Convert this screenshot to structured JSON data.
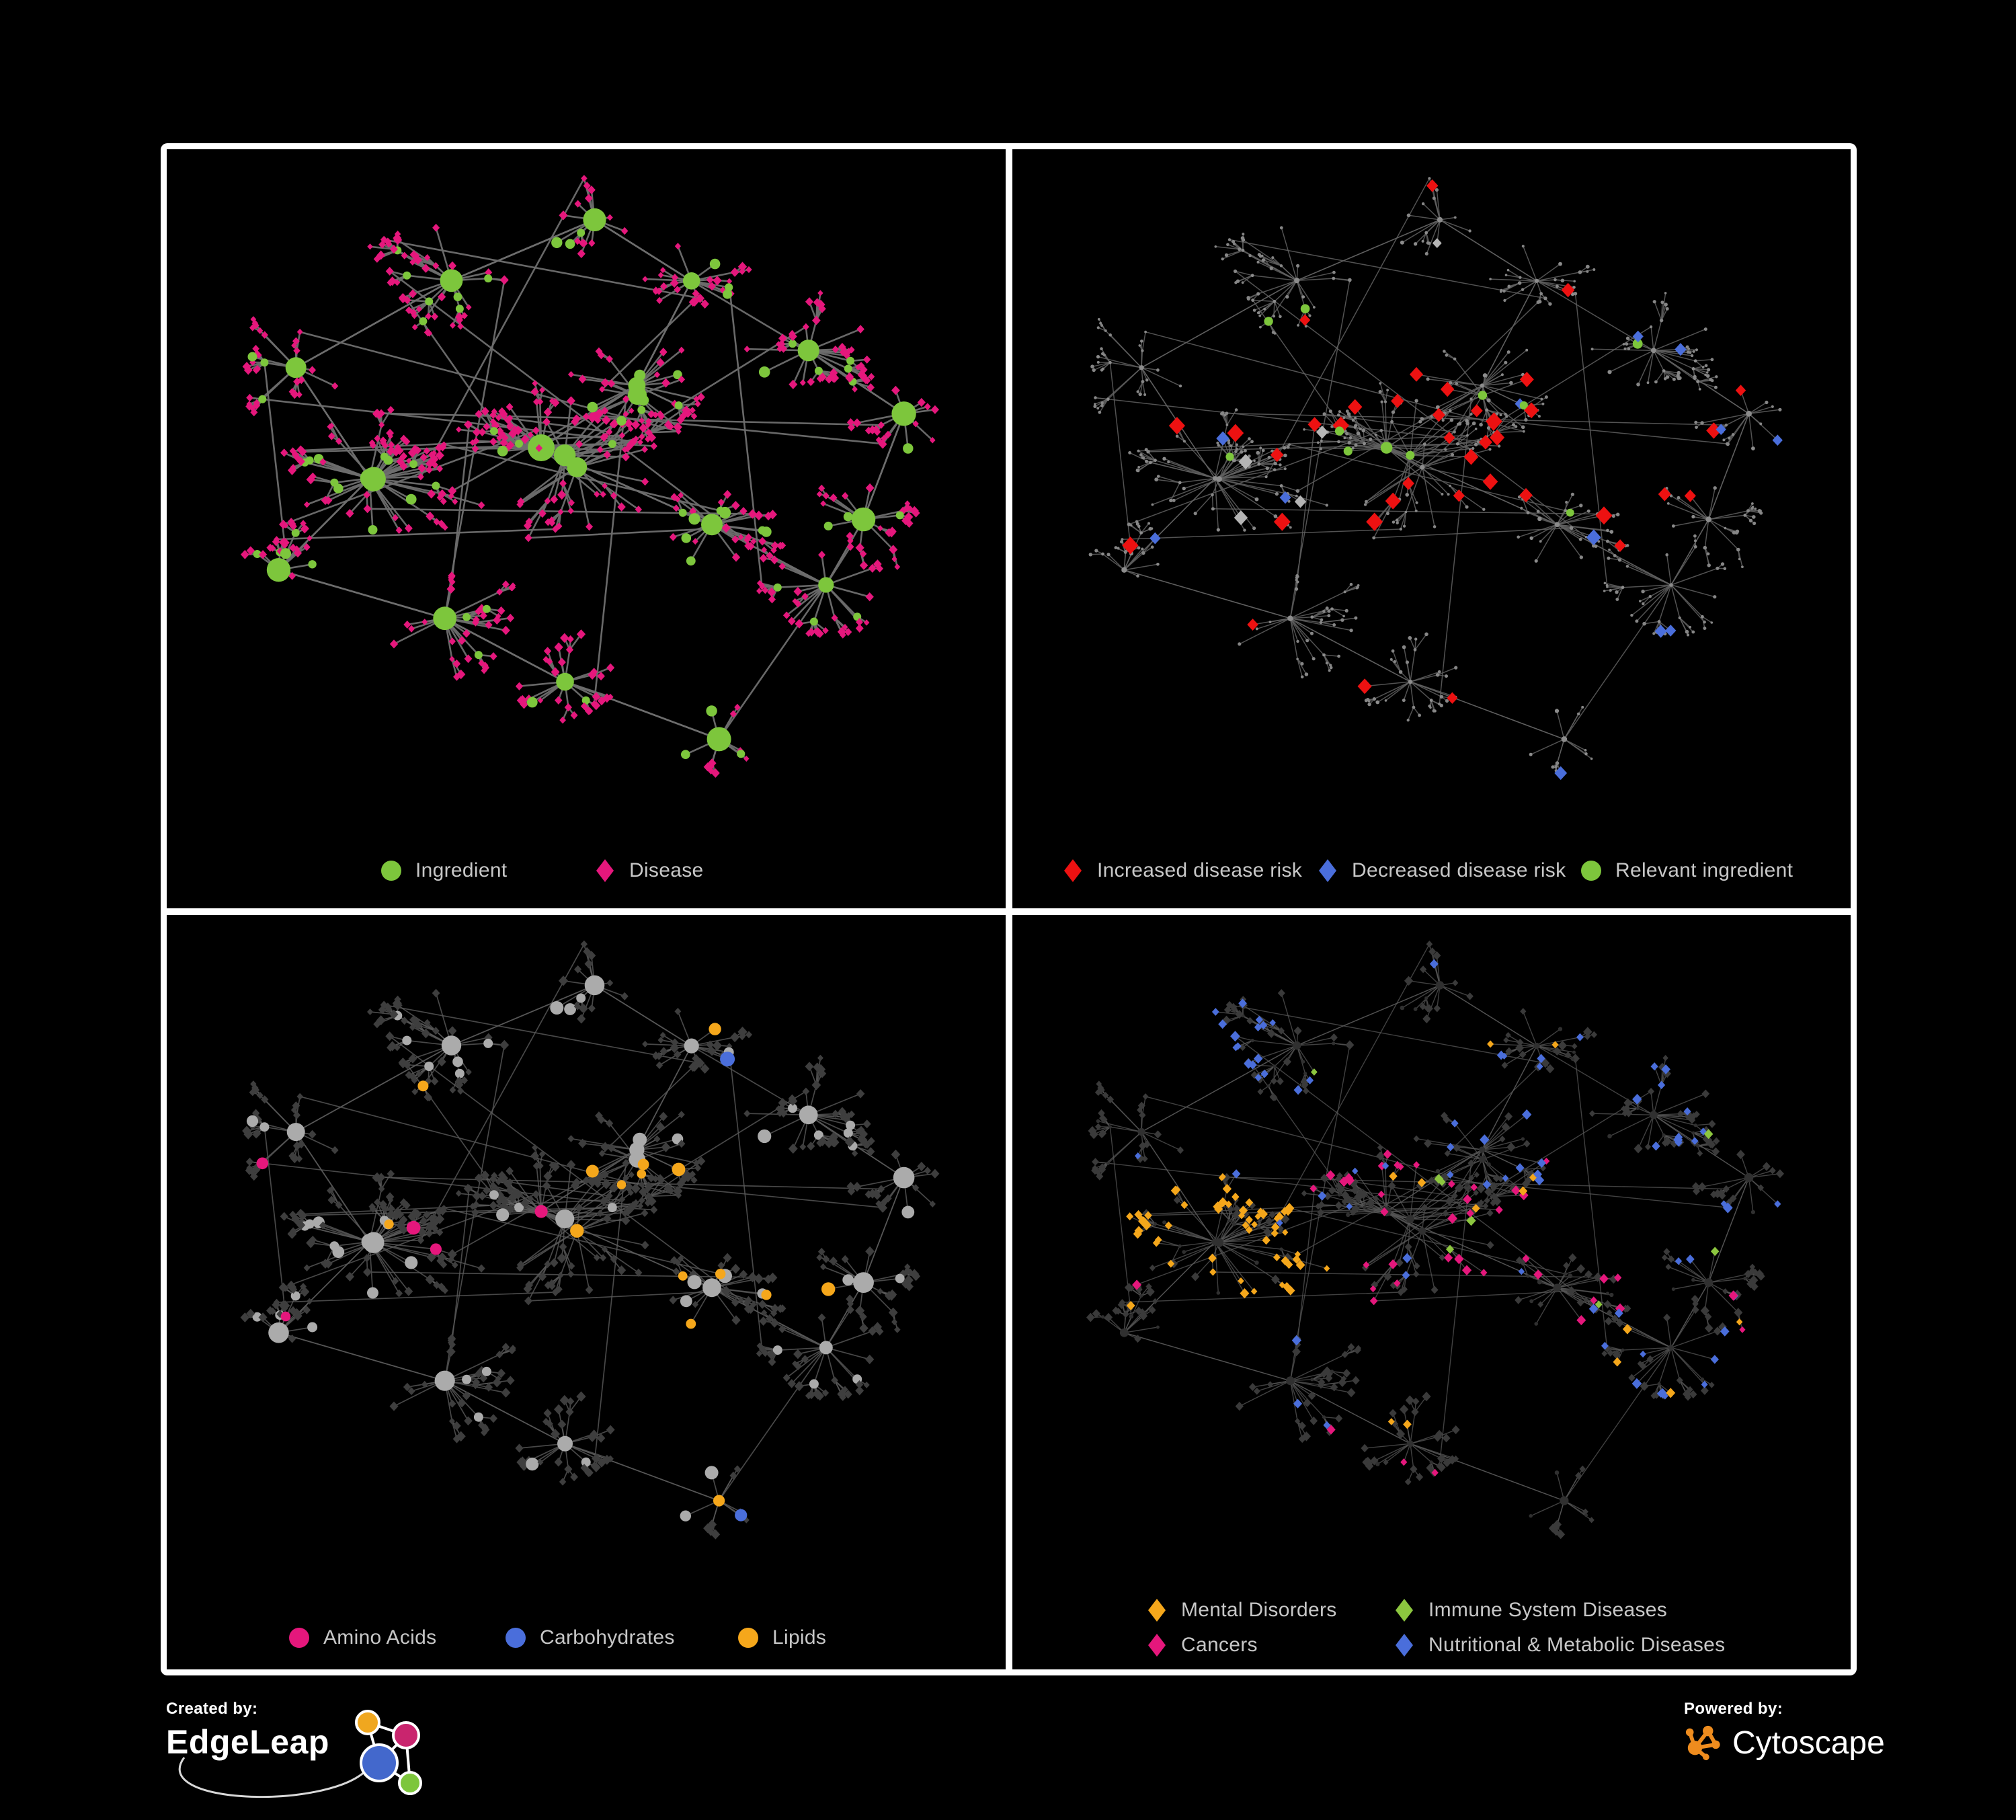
{
  "figure": {
    "background": "#000000",
    "frame_color": "#ffffff"
  },
  "footer": {
    "created_by_label": "Created by:",
    "created_by_brand": "EdgeLeap",
    "powered_by_label": "Powered by:",
    "powered_by_brand": "Cytoscape",
    "edgeleap_logo_colors": {
      "orange": "#F0A71F",
      "pink": "#C9256E",
      "blue": "#4368CC",
      "green": "#7DC63C"
    },
    "cytoscape_logo_color": "#EE8C1E"
  },
  "chart_data": {
    "type": "network-multi-panel",
    "description": "Four views of the same ingredient-disease association network rendered on black panels in a 2x2 grid.",
    "panels": [
      {
        "id": "ingredient-disease",
        "position": "top-left",
        "legend": [
          {
            "label": "Ingredient",
            "shape": "circle",
            "color": "#7DC63C"
          },
          {
            "label": "Disease",
            "shape": "diamond",
            "color": "#E5177C"
          }
        ],
        "style": {
          "edge": {
            "color": "#6E6E6E",
            "width": 2.6,
            "opacity": 0.95
          },
          "ingredient": {
            "shape": "circle",
            "color": "#7DC63C",
            "r": 7,
            "hub_r": 15,
            "sub_r": 6
          },
          "disease": {
            "shape": "diamond",
            "color": "#E5177C",
            "r": 5.6
          }
        },
        "highlight_rules": []
      },
      {
        "id": "disease-risk",
        "position": "top-right",
        "legend": [
          {
            "label": "Increased disease risk",
            "shape": "diamond",
            "color": "#ED1111"
          },
          {
            "label": "Decreased disease risk",
            "shape": "diamond",
            "color": "#4A6EDB"
          },
          {
            "label": "Relevant ingredient",
            "shape": "circle",
            "color": "#7DC63C"
          }
        ],
        "style": {
          "edge": {
            "color": "#606060",
            "width": 1.5,
            "opacity": 0.85
          },
          "ingredient": {
            "shape": "circle",
            "color": "#8C8C8C",
            "r": 2.6,
            "hub_r": 3.6,
            "sub_r": 2.4
          },
          "disease": {
            "shape": "circle",
            "color": "#868686",
            "r": 2.2
          }
        },
        "highlight_rules": [
          {
            "on": "d",
            "shape": "diamond",
            "color": "#ED1111",
            "r": 10.5,
            "clusters": [
              0,
              1,
              2,
              8
            ],
            "p": 0.13,
            "p_other": 0.015,
            "max": 44
          },
          {
            "on": "d",
            "shape": "diamond",
            "color": "#4A6EDB",
            "r": 9.5,
            "clusters": [
              1,
              2,
              7
            ],
            "p": 0.07,
            "p_other": 0.008,
            "max": 14
          },
          {
            "on": "d",
            "shape": "diamond",
            "color": "#B5B5B5",
            "r": 9.0,
            "clusters": [
              0,
              1,
              8
            ],
            "p": 0.03,
            "p_other": 0.004,
            "max": 8
          },
          {
            "on": "i",
            "shape": "circle",
            "color": "#7DC63C",
            "r": 6.8,
            "clusters": [
              0,
              1,
              2,
              8,
              9,
              14
            ],
            "p": 0.2,
            "p_other": 0.05,
            "max": 40
          }
        ]
      },
      {
        "id": "ingredient-classes",
        "position": "bottom-left",
        "legend": [
          {
            "label": "Amino Acids",
            "shape": "circle",
            "color": "#E5177C"
          },
          {
            "label": "Carbohydrates",
            "shape": "circle",
            "color": "#4A6EDB"
          },
          {
            "label": "Lipids",
            "shape": "circle",
            "color": "#F5A71B"
          }
        ],
        "style": {
          "edge": {
            "color": "#5A5A5A",
            "width": 1.7,
            "opacity": 0.8
          },
          "ingredient": {
            "shape": "circle",
            "color": "#ABABAB",
            "r": 8.5,
            "hub_r": 13,
            "sub_r": 7
          },
          "disease": {
            "shape": "diamond",
            "color": "#3E3E3E",
            "r": 6
          }
        },
        "highlight_rules": [
          {
            "on": "i",
            "shape": "circle",
            "color": "#F5A71B",
            "r": 8.5,
            "clusters": [
              2,
              8
            ],
            "p": 0.42,
            "p_other": 0.075,
            "max": 60
          },
          {
            "on": "i",
            "shape": "circle",
            "color": "#E5177C",
            "r": 8.5,
            "clusters": [
              0,
              1,
              10,
              11,
              14
            ],
            "p": 0.1,
            "p_other": 0.05,
            "max": 27
          },
          {
            "on": "i",
            "shape": "circle",
            "color": "#4A6EDB",
            "r": 8.5,
            "clusters": [
              2,
              3
            ],
            "p": 0.1,
            "p_other": 0.018,
            "max": 14
          }
        ]
      },
      {
        "id": "disease-classes",
        "position": "bottom-right",
        "legend": [
          {
            "label": "Mental Disorders",
            "shape": "diamond",
            "color": "#F5A71B"
          },
          {
            "label": "Immune System Diseases",
            "shape": "diamond",
            "color": "#8CC63F"
          },
          {
            "label": "Cancers",
            "shape": "diamond",
            "color": "#E5177C"
          },
          {
            "label": "Nutritional & Metabolic Diseases",
            "shape": "diamond",
            "color": "#4A6EDB"
          }
        ],
        "style": {
          "edge": {
            "color": "#575757",
            "width": 1.4,
            "opacity": 0.75
          },
          "ingredient": {
            "shape": "circle",
            "color": "#303030",
            "r": 2.8,
            "hub_r": 5.5,
            "sub_r": 2.6
          },
          "disease": {
            "shape": "diamond",
            "color": "#3A3A3A",
            "r": 5.6
          }
        },
        "highlight_rules": [
          {
            "on": "d",
            "shape": "diamond",
            "color": "#F5A71B",
            "r": 6.2,
            "clusters": [
              1
            ],
            "p": 0.6,
            "p_other": 0.02,
            "max": 100
          },
          {
            "on": "d",
            "shape": "diamond",
            "color": "#E5177C",
            "r": 6.2,
            "clusters": [
              0,
              8,
              11
            ],
            "p": 0.22,
            "p_other": 0.02,
            "max": 72
          },
          {
            "on": "d",
            "shape": "diamond",
            "color": "#4A6EDB",
            "r": 6.2,
            "clusters": [
              2,
              3,
              5,
              6,
              7,
              9,
              14
            ],
            "p": 0.2,
            "p_other": 0.04,
            "max": 105
          },
          {
            "on": "d",
            "shape": "diamond",
            "color": "#8CC63F",
            "r": 6.2,
            "clusters": [],
            "p": 0,
            "p_other": 0.02,
            "max": 14
          }
        ]
      }
    ],
    "network_generation": {
      "seed": 7,
      "long_edges": 26,
      "clusters": [
        {
          "x": 0.47,
          "y": 0.47,
          "hubs": 3,
          "children": 44,
          "spread": 0.085
        },
        {
          "x": 0.2,
          "y": 0.5,
          "hubs": 2,
          "children": 36,
          "spread": 0.075
        },
        {
          "x": 0.56,
          "y": 0.34,
          "hubs": 2,
          "children": 30,
          "spread": 0.068
        },
        {
          "x": 0.33,
          "y": 0.16,
          "hubs": 1,
          "children": 18,
          "spread": 0.07
        },
        {
          "x": 0.49,
          "y": 0.09,
          "hubs": 1,
          "children": 13,
          "spread": 0.055
        },
        {
          "x": 0.64,
          "y": 0.16,
          "hubs": 1,
          "children": 13,
          "spread": 0.055
        },
        {
          "x": 0.81,
          "y": 0.27,
          "hubs": 1,
          "children": 16,
          "spread": 0.06
        },
        {
          "x": 0.91,
          "y": 0.4,
          "hubs": 1,
          "children": 11,
          "spread": 0.05
        },
        {
          "x": 0.645,
          "y": 0.585,
          "hubs": 1,
          "children": 22,
          "spread": 0.055
        },
        {
          "x": 0.8,
          "y": 0.68,
          "hubs": 1,
          "children": 15,
          "spread": 0.06
        },
        {
          "x": 0.285,
          "y": 0.715,
          "hubs": 1,
          "children": 17,
          "spread": 0.065
        },
        {
          "x": 0.475,
          "y": 0.83,
          "hubs": 1,
          "children": 15,
          "spread": 0.05
        },
        {
          "x": 0.13,
          "y": 0.32,
          "hubs": 1,
          "children": 12,
          "spread": 0.06
        },
        {
          "x": 0.67,
          "y": 0.895,
          "hubs": 1,
          "children": 9,
          "spread": 0.045
        },
        {
          "x": 0.87,
          "y": 0.55,
          "hubs": 1,
          "children": 12,
          "spread": 0.05
        },
        {
          "x": 0.095,
          "y": 0.615,
          "hubs": 1,
          "children": 10,
          "spread": 0.055
        }
      ]
    }
  }
}
